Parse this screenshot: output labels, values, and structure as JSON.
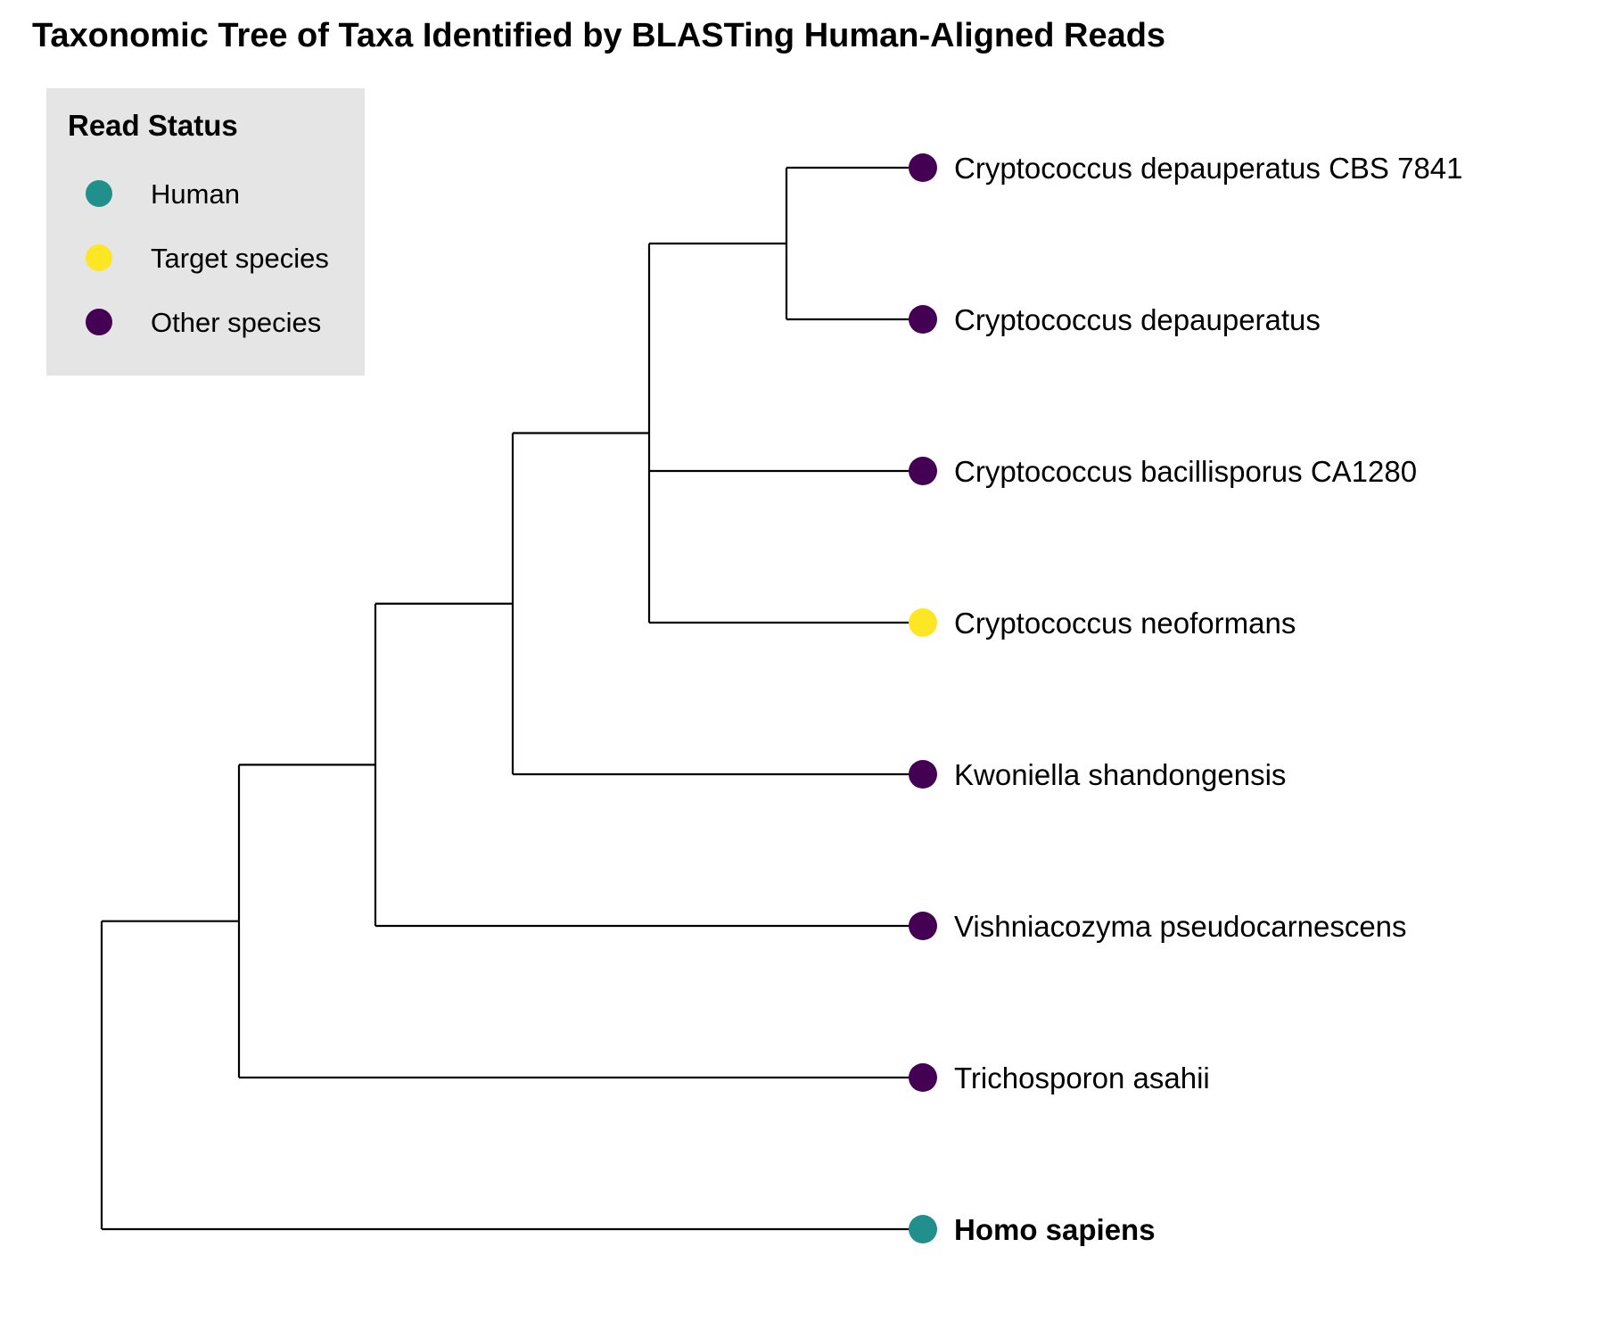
{
  "title": "Taxonomic Tree of Taxa Identified by BLASTing Human-Aligned Reads",
  "legend": {
    "title": "Read Status",
    "items": [
      {
        "label": "Human",
        "color": "#21908C"
      },
      {
        "label": "Target species",
        "color": "#FDE725"
      },
      {
        "label": "Other species",
        "color": "#440154"
      }
    ]
  },
  "tips": [
    {
      "label": "Cryptococcus depauperatus CBS 7841",
      "status": "Other species",
      "bold": false
    },
    {
      "label": "Cryptococcus depauperatus",
      "status": "Other species",
      "bold": false
    },
    {
      "label": "Cryptococcus bacillisporus CA1280",
      "status": "Other species",
      "bold": false
    },
    {
      "label": "Cryptococcus neoformans",
      "status": "Target species",
      "bold": false
    },
    {
      "label": "Kwoniella shandongensis",
      "status": "Other species",
      "bold": false
    },
    {
      "label": "Vishniacozyma pseudocarnescens",
      "status": "Other species",
      "bold": false
    },
    {
      "label": "Trichosporon asahii",
      "status": "Other species",
      "bold": false
    },
    {
      "label": "Homo sapiens",
      "status": "Human",
      "bold": true
    }
  ],
  "tree": {
    "children": [
      {
        "children": [
          {
            "children": [
              {
                "children": [
                  {
                    "children": [
                      {
                        "tip": 0
                      },
                      {
                        "tip": 1
                      }
                    ]
                  },
                  {
                    "tip": 2
                  },
                  {
                    "tip": 3
                  }
                ]
              },
              {
                "tip": 4
              }
            ]
          },
          {
            "tip": 5
          }
        ]
      },
      {
        "tip": 6
      }
    ],
    "outgroup": {
      "tip": 7
    }
  }
}
